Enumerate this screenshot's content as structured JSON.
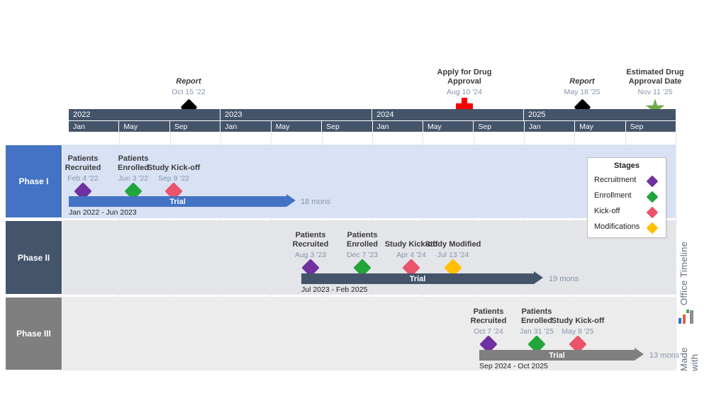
{
  "chart_data": {
    "type": "bar",
    "subtype": "gantt-timeline",
    "axis": {
      "years": [
        "2022",
        "2023",
        "2024",
        "2025"
      ],
      "months": [
        "Jan",
        "May",
        "Sep",
        "Jan",
        "May",
        "Sep",
        "Jan",
        "May",
        "Sep",
        "Jan",
        "May",
        "Sep"
      ]
    },
    "top_milestones": [
      {
        "title": "Report",
        "date": "Oct 15 '22",
        "marker": "black-diamond"
      },
      {
        "title": "Apply for Drug Approval",
        "date": "Aug 10 '24",
        "marker": "red-cross"
      },
      {
        "title": "Report",
        "date": "May 18 '25",
        "marker": "black-diamond"
      },
      {
        "title": "Estimated Drug Approval Date",
        "date": "Nov 11 '25",
        "marker": "green-star"
      }
    ],
    "phases": [
      {
        "name": "Phase I",
        "bar": {
          "label": "Trial",
          "start": "Jan 2022",
          "end": "Jun 2023",
          "date_range": "Jan 2022 - Jun 2023",
          "duration_label": "18 mons",
          "duration_months": 18
        },
        "milestones": [
          {
            "title": "Patients Recruited",
            "date": "Feb 4 '22",
            "stage": "Recruitment"
          },
          {
            "title": "Patients Enrolled",
            "date": "Jun 3 '22",
            "stage": "Enrollment"
          },
          {
            "title": "Study Kick-off",
            "date": "Sep 9 '22",
            "stage": "Kick-off"
          }
        ]
      },
      {
        "name": "Phase II",
        "bar": {
          "label": "Trial",
          "start": "Jul 2023",
          "end": "Feb 2025",
          "date_range": "Jul 2023 - Feb 2025",
          "duration_label": "19 mons",
          "duration_months": 19
        },
        "milestones": [
          {
            "title": "Patients Recruited",
            "date": "Aug 3 '23",
            "stage": "Recruitment"
          },
          {
            "title": "Patients Enrolled",
            "date": "Dec 7 '23",
            "stage": "Enrollment"
          },
          {
            "title": "Study Kick-off",
            "date": "Apr 4 '24",
            "stage": "Kick-off"
          },
          {
            "title": "Study Modified",
            "date": "Jul 13 '24",
            "stage": "Modifications"
          }
        ]
      },
      {
        "name": "Phase III",
        "bar": {
          "label": "Trial",
          "start": "Sep 2024",
          "end": "Oct 2025",
          "date_range": "Sep 2024 - Oct 2025",
          "duration_label": "13 mons",
          "duration_months": 13
        },
        "milestones": [
          {
            "title": "Patients Recruited",
            "date": "Oct 7 '24",
            "stage": "Recruitment"
          },
          {
            "title": "Patients Enrolled",
            "date": "Jan 31 '25",
            "stage": "Enrollment"
          },
          {
            "title": "Study Kick-off",
            "date": "May 8 '25",
            "stage": "Kick-off"
          }
        ]
      }
    ],
    "legend": {
      "title": "Stages",
      "items": [
        {
          "label": "Recruitment",
          "color": "#7030A0"
        },
        {
          "label": "Enrollment",
          "color": "#22A63C"
        },
        {
          "label": "Kick-off",
          "color": "#E9546B"
        },
        {
          "label": "Modifications",
          "color": "#FFC000"
        }
      ]
    }
  },
  "branding": {
    "prefix": "Made with",
    "brand": "Office Timeline"
  },
  "colors": {
    "axis_band": "#44546A",
    "phase1_accent": "#4472C4",
    "phase2_accent": "#44546A",
    "phase3_accent": "#7F7F7F",
    "row1_bg": "#D9E2F4",
    "row2_bg": "#E3E5E9",
    "row3_bg": "#ECECEC",
    "stage_recruitment": "#7030A0",
    "stage_enrollment": "#22A63C",
    "stage_kickoff": "#E9546B",
    "stage_modifications": "#FFC000",
    "marker_report": "#000000",
    "marker_apply_cross": "#FF0000",
    "marker_approval_star": "#70AD47",
    "date_text": "#8494AC"
  }
}
